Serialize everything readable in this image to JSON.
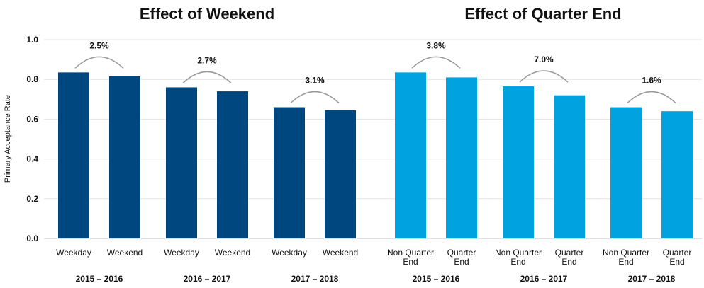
{
  "chart_data": {
    "type": "bar",
    "ylabel": "Primary Acceptance Rate",
    "ylim": [
      0,
      1.0
    ],
    "yticks": [
      "0.0",
      "0.2",
      "0.4",
      "0.6",
      "0.8",
      "1.0"
    ],
    "grid": true,
    "panels": [
      {
        "title": "Effect of Weekend",
        "color": "#00467f",
        "groups": [
          {
            "label": "2015 – 2016",
            "bars": [
              {
                "label": [
                  "Weekday"
                ],
                "value": 0.835
              },
              {
                "label": [
                  "Weekend"
                ],
                "value": 0.815
              }
            ],
            "change": "2.5%"
          },
          {
            "label": "2016 – 2017",
            "bars": [
              {
                "label": [
                  "Weekday"
                ],
                "value": 0.76
              },
              {
                "label": [
                  "Weekend"
                ],
                "value": 0.74
              }
            ],
            "change": "2.7%"
          },
          {
            "label": "2017 – 2018",
            "bars": [
              {
                "label": [
                  "Weekday"
                ],
                "value": 0.66
              },
              {
                "label": [
                  "Weekend"
                ],
                "value": 0.645
              }
            ],
            "change": "3.1%"
          }
        ]
      },
      {
        "title": "Effect of Quarter End",
        "color": "#00a3e0",
        "groups": [
          {
            "label": "2015 – 2016",
            "bars": [
              {
                "label": [
                  "Non Quarter",
                  "End"
                ],
                "value": 0.835
              },
              {
                "label": [
                  "Quarter",
                  "End"
                ],
                "value": 0.81
              }
            ],
            "change": "3.8%"
          },
          {
            "label": "2016 – 2017",
            "bars": [
              {
                "label": [
                  "Non Quarter",
                  "End"
                ],
                "value": 0.765
              },
              {
                "label": [
                  "Quarter",
                  "End"
                ],
                "value": 0.72
              }
            ],
            "change": "7.0%"
          },
          {
            "label": "2017 – 2018",
            "bars": [
              {
                "label": [
                  "Non Quarter",
                  "End"
                ],
                "value": 0.66
              },
              {
                "label": [
                  "Quarter",
                  "End"
                ],
                "value": 0.64
              }
            ],
            "change": "1.6%"
          }
        ]
      }
    ]
  }
}
